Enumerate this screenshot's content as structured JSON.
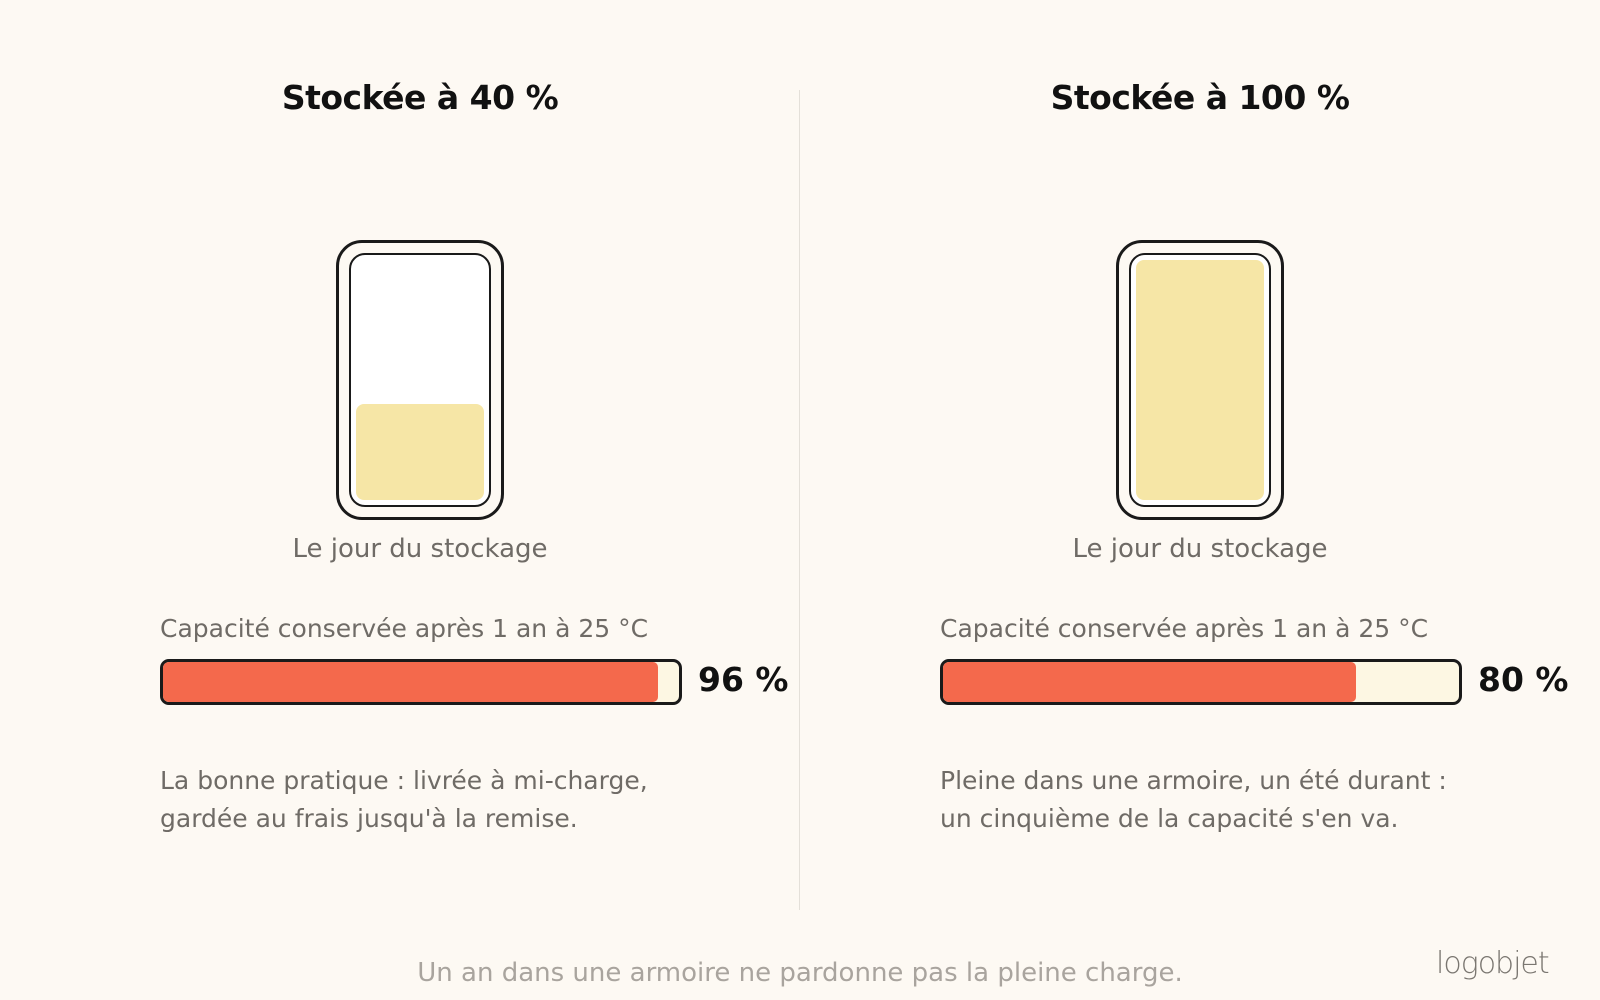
{
  "left": {
    "title": "Stockée à 40 %",
    "battery_level": 0.4,
    "battery_caption": "Le jour du stockage",
    "bar_label": "Capacité conservée après 1 an à 25 °C",
    "retention_percent": 96,
    "retention_text": "96 %",
    "description_lines": [
      "La bonne pratique : livrée à mi-charge,",
      "gardée au frais jusqu'à la remise."
    ]
  },
  "right": {
    "title": "Stockée à 100 %",
    "battery_level": 1.0,
    "battery_caption": "Le jour du stockage",
    "bar_label": "Capacité conservée après 1 an à 25 °C",
    "retention_percent": 80,
    "retention_text": "80 %",
    "description_lines": [
      "Pleine dans une armoire, un été durant :",
      "un cinquième de la capacité s'en va."
    ]
  },
  "footer": "Un an dans une armoire ne pardonne pas la pleine charge.",
  "logo": "logobjet",
  "colors": {
    "background": "#fdf9f3",
    "battery_fill": "#f6e6a6",
    "bar_fill": "#f4694c",
    "bar_track": "#fdf7e3"
  }
}
